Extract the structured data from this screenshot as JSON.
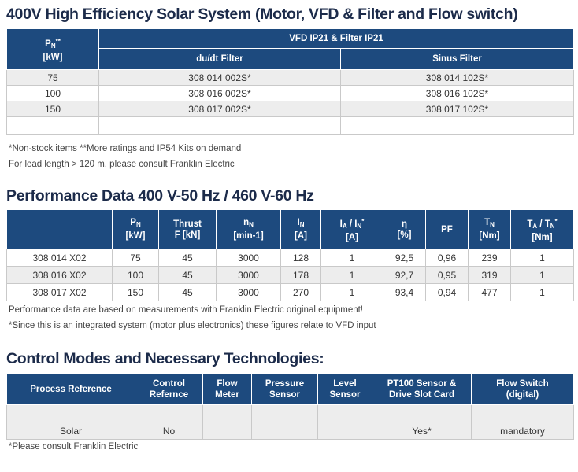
{
  "section1": {
    "title": "400V High Efficiency Solar System (Motor, VFD & Filter and Flow switch)",
    "col_pn_main": "P",
    "col_pn_sub": "N",
    "col_pn_sup": "**",
    "col_pn_unit": "[kW]",
    "group_header": "VFD IP21 & Filter IP21",
    "col_dudt": "du/dt Filter",
    "col_sinus": "Sinus Filter",
    "rows": [
      {
        "pn": "75",
        "dudt": "308 014 002S*",
        "sinus": "308 014 102S*"
      },
      {
        "pn": "100",
        "dudt": "308 016 002S*",
        "sinus": "308 016 102S*"
      },
      {
        "pn": "150",
        "dudt": "308 017 002S*",
        "sinus": "308 017 102S*"
      },
      {
        "pn": "",
        "dudt": "",
        "sinus": ""
      }
    ],
    "note1": "*Non-stock items **More ratings and IP54 Kits on demand",
    "note2": "For lead length > 120 m, please consult Franklin Electric"
  },
  "section2": {
    "title": "Performance Data 400 V-50 Hz / 460 V-60 Hz",
    "headers": {
      "pn_main": "P",
      "pn_sub": "N",
      "pn_unit": "[kW]",
      "thrust_1": "Thrust",
      "thrust_2": "F [kN]",
      "nn_main": "n",
      "nn_sub": "N",
      "nn_unit": "[min-1]",
      "in_main": "I",
      "in_sub": "N",
      "in_unit": "[A]",
      "ia_a": "I",
      "ia_a_sub": "A",
      "ia_slash": " / I",
      "ia_n_sub": "N",
      "ia_sup": "*",
      "ia_unit": "[A]",
      "eta_main": "η",
      "eta_unit": "[%]",
      "pf": "PF",
      "tn_main": "T",
      "tn_sub": "N",
      "tn_unit": "[Nm]",
      "ta_a": "T",
      "ta_a_sub": "A",
      "ta_slash": " / T",
      "ta_n_sub": "N",
      "ta_sup": "*",
      "ta_unit": "[Nm]"
    },
    "rows": [
      {
        "model": "308 014 X02",
        "pn": "75",
        "thrust": "45",
        "nn": "3000",
        "in": "128",
        "ia": "1",
        "eta": "92,5",
        "pf": "0,96",
        "tn": "239",
        "ta": "1"
      },
      {
        "model": "308 016 X02",
        "pn": "100",
        "thrust": "45",
        "nn": "3000",
        "in": "178",
        "ia": "1",
        "eta": "92,7",
        "pf": "0,95",
        "tn": "319",
        "ta": "1"
      },
      {
        "model": "308 017 X02",
        "pn": "150",
        "thrust": "45",
        "nn": "3000",
        "in": "270",
        "ia": "1",
        "eta": "93,4",
        "pf": "0,94",
        "tn": "477",
        "ta": "1"
      }
    ],
    "note1": "Performance data are based on measurements with Franklin Electric original equipment!",
    "note2": "*Since this is an integrated system (motor plus electronics) these figures relate to VFD input"
  },
  "section3": {
    "title": "Control Modes and Necessary Technologies:",
    "headers": {
      "process": "Process Reference",
      "control_1": "Control",
      "control_2": "Refernce",
      "flow_1": "Flow",
      "flow_2": "Meter",
      "pressure_1": "Pressure",
      "pressure_2": "Sensor",
      "level_1": "Level",
      "level_2": "Sensor",
      "pt100_1": "PT100 Sensor &",
      "pt100_2": "Drive Slot Card",
      "flowswitch_1": "Flow Switch",
      "flowswitch_2": "(digital)"
    },
    "rows": [
      {
        "process": "",
        "control": "",
        "flow": "",
        "pressure": "",
        "level": "",
        "pt100": "",
        "flowswitch": ""
      },
      {
        "process": "Solar",
        "control": "No",
        "flow": "",
        "pressure": "",
        "level": "",
        "pt100": "Yes*",
        "flowswitch": "mandatory"
      }
    ],
    "note1": "*Please consult Franklin Electric"
  }
}
